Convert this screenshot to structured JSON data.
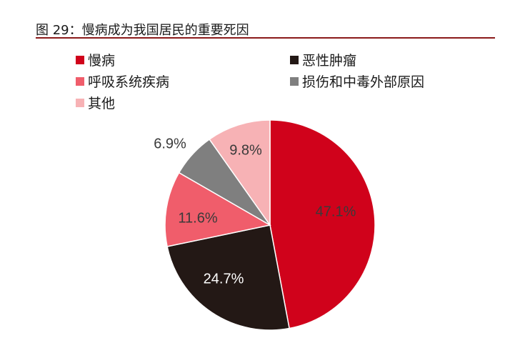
{
  "figure_title": "图 29：慢病成为我国居民的重要死因",
  "colors": {
    "rule": "#8b1a1a"
  },
  "chart_data": {
    "type": "pie",
    "title": "",
    "legend_placement": "top",
    "slices": [
      {
        "label": "慢病",
        "value": 47.1,
        "display": "47.1%",
        "color": "#d0021b",
        "label_color": "#3a3a3a"
      },
      {
        "label": "恶性肿瘤",
        "value": 24.7,
        "display": "24.7%",
        "color": "#231815",
        "label_color": "#ffffff"
      },
      {
        "label": "呼吸系统疾病",
        "value": 11.6,
        "display": "11.6%",
        "color": "#f05d6b",
        "label_color": "#3a3a3a"
      },
      {
        "label": "损伤和中毒外部原因",
        "value": 6.9,
        "display": "6.9%",
        "color": "#7f7f7f",
        "label_color": "#3a3a3a"
      },
      {
        "label": "其他",
        "value": 9.8,
        "display": "9.8%",
        "color": "#f7b2b5",
        "label_color": "#3a3a3a"
      }
    ]
  }
}
